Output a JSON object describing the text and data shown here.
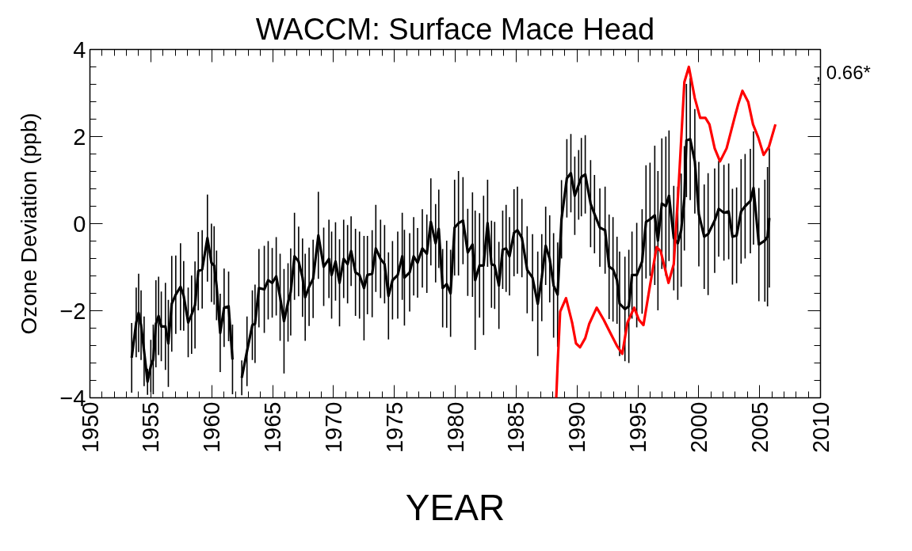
{
  "chart_data": {
    "type": "line",
    "title": "WACCM: Surface Mace Head",
    "xlabel": "YEAR",
    "ylabel": "Ozone Deviation (ppb)",
    "annotations": [
      ", 0.66*"
    ],
    "xlim": [
      1950,
      2010
    ],
    "xticks": [
      1950,
      1955,
      1960,
      1965,
      1970,
      1975,
      1980,
      1985,
      1990,
      1995,
      2000,
      2005,
      2010
    ],
    "ylim": [
      -4,
      4
    ],
    "yticks": [
      -4,
      -2,
      0,
      2,
      4
    ],
    "grid": false,
    "line_style": "solid",
    "marker": "none",
    "series": [
      {
        "color": "#000000",
        "x": [
          1953.43,
          1953.8,
          1954.0,
          1954.2,
          1954.45,
          1954.73,
          1955.0,
          1955.2,
          1955.42,
          1955.64,
          1955.86,
          1956.2,
          1956.44,
          1956.72,
          1957.05,
          1957.44,
          1957.7,
          1958.07,
          1958.35,
          1958.63,
          1958.9,
          1959.22,
          1959.65,
          1959.98,
          1960.2,
          1960.4,
          1960.7,
          1961.02,
          1961.39,
          1961.71,
          1962.0,
          1962.47,
          1962.9,
          1963.34,
          1963.56,
          1963.88,
          1964.32,
          1964.64,
          1964.97,
          1965.3,
          1965.62,
          1965.94,
          1966.27,
          1966.49,
          1966.8,
          1967.14,
          1967.46,
          1967.68,
          1968.0,
          1968.33,
          1968.76,
          1969.2,
          1969.63,
          1969.85,
          1970.17,
          1970.5,
          1970.84,
          1971.16,
          1971.45,
          1971.81,
          1972.14,
          1972.51,
          1972.79,
          1973.18,
          1973.48,
          1973.87,
          1974.2,
          1974.52,
          1974.85,
          1975.28,
          1975.65,
          1975.83,
          1976.26,
          1976.59,
          1976.91,
          1977.3,
          1977.67,
          1978.0,
          1978.39,
          1978.65,
          1978.97,
          1979.3,
          1979.62,
          1979.95,
          1980.27,
          1980.64,
          1981.03,
          1981.42,
          1981.64,
          1982.0,
          1982.33,
          1982.66,
          1982.98,
          1983.24,
          1983.59,
          1983.9,
          1984.18,
          1984.46,
          1984.83,
          1985.11,
          1985.48,
          1985.91,
          1986.35,
          1986.78,
          1987.11,
          1987.43,
          1987.76,
          1988.08,
          1988.41,
          1988.73,
          1989.17,
          1989.5,
          1989.82,
          1990.14,
          1990.36,
          1990.68,
          1991.12,
          1991.44,
          1991.88,
          1992.31,
          1992.64,
          1992.96,
          1993.29,
          1993.5,
          1993.94,
          1994.26,
          1994.52,
          1994.91,
          1995.35,
          1995.67,
          1996.0,
          1996.39,
          1996.65,
          1996.97,
          1997.3,
          1997.56,
          1997.95,
          1998.28,
          1998.56,
          1998.82,
          1998.99,
          1999.3,
          1999.68,
          2000.01,
          2000.45,
          2000.77,
          2001.31,
          2001.64,
          2002.07,
          2002.46,
          2002.77,
          2003.11,
          2003.48,
          2003.81,
          2004.24,
          2004.5,
          2004.94,
          2005.43,
          2005.65,
          2005.8
        ],
        "values": [
          -3.08,
          -2.27,
          -2.05,
          -2.33,
          -2.93,
          -3.63,
          -3.27,
          -3.12,
          -2.3,
          -2.12,
          -2.36,
          -2.36,
          -2.75,
          -1.84,
          -1.63,
          -1.45,
          -1.66,
          -2.27,
          -2.09,
          -1.87,
          -1.09,
          -1.05,
          -0.33,
          -0.9,
          -0.96,
          -1.42,
          -2.51,
          -1.93,
          -1.9,
          -3.12,
          null,
          -3.54,
          -2.93,
          -2.33,
          -2.3,
          -1.48,
          -1.51,
          -1.3,
          -1.36,
          -1.21,
          -1.69,
          -2.24,
          -1.81,
          -1.57,
          -0.75,
          -0.87,
          -1.24,
          -1.69,
          -1.45,
          -1.27,
          -0.27,
          -0.99,
          -0.81,
          -1.18,
          -0.87,
          -1.36,
          -0.81,
          -0.93,
          -0.63,
          -1.12,
          -1.18,
          -1.48,
          -1.18,
          -1.15,
          -0.57,
          -0.81,
          -0.93,
          -1.66,
          -1.3,
          -1.18,
          -0.75,
          -1.24,
          -1.12,
          -0.75,
          -0.9,
          -0.57,
          -0.69,
          0.04,
          -0.45,
          -0.12,
          -1.48,
          -1.39,
          -1.6,
          -0.09,
          0.01,
          0.07,
          -0.66,
          -0.48,
          -1.3,
          -0.96,
          -0.96,
          0.01,
          -0.93,
          -0.96,
          -1.42,
          -0.6,
          -0.57,
          -0.75,
          -0.21,
          -0.15,
          -0.33,
          -1.06,
          -1.24,
          -1.84,
          -1.24,
          -0.51,
          -0.81,
          -1.42,
          -1.63,
          0.1,
          1.04,
          1.16,
          0.64,
          0.89,
          1.07,
          1.13,
          0.46,
          0.22,
          -0.09,
          -0.15,
          -0.99,
          -1.05,
          -1.3,
          -1.84,
          -1.96,
          -1.9,
          -1.18,
          -1.18,
          -0.87,
          0.04,
          0.1,
          0.19,
          -0.39,
          0.46,
          0.4,
          0.64,
          -0.33,
          -0.45,
          -0.15,
          0.58,
          1.91,
          1.94,
          1.43,
          0.22,
          -0.3,
          -0.24,
          0.07,
          0.34,
          0.25,
          0.28,
          -0.3,
          -0.27,
          0.28,
          0.4,
          0.52,
          0.82,
          -0.48,
          -0.39,
          -0.3,
          0.13
        ],
        "errors": [
          0.8,
          0.8,
          0.9,
          0.8,
          0.8,
          0.3,
          0.6,
          0.8,
          1.0,
          0.9,
          0.8,
          1.0,
          1.0,
          1.1,
          0.9,
          1.0,
          0.8,
          0.8,
          0.9,
          1.0,
          0.9,
          0.9,
          1.0,
          0.9,
          0.9,
          0.8,
          0.9,
          0.9,
          0.8,
          0.8,
          null,
          0.4,
          0.8,
          0.8,
          0.9,
          0.9,
          1.0,
          0.9,
          0.8,
          0.9,
          1.0,
          1.2,
          0.9,
          1.0,
          1.0,
          0.8,
          0.9,
          1.0,
          0.9,
          0.9,
          1.0,
          0.9,
          0.9,
          1.0,
          0.9,
          1.0,
          0.9,
          0.9,
          0.8,
          1.0,
          1.0,
          1.2,
          0.9,
          1.0,
          1.0,
          0.9,
          0.9,
          1.0,
          0.9,
          1.0,
          1.0,
          1.1,
          0.9,
          0.9,
          0.8,
          0.9,
          0.9,
          1.0,
          0.9,
          0.9,
          0.9,
          1.0,
          1.0,
          1.1,
          1.2,
          1.0,
          1.0,
          1.2,
          1.6,
          1.2,
          1.6,
          1.0,
          1.0,
          1.0,
          1.0,
          0.9,
          1.0,
          0.9,
          1.0,
          1.0,
          0.9,
          1.0,
          1.0,
          1.2,
          1.0,
          0.9,
          1.0,
          1.2,
          1.2,
          0.9,
          0.9,
          0.9,
          0.9,
          0.8,
          0.9,
          0.9,
          1.0,
          0.9,
          0.9,
          1.0,
          1.2,
          1.2,
          1.0,
          1.2,
          1.2,
          1.3,
          1.0,
          1.2,
          1.2,
          1.3,
          1.3,
          1.6,
          1.6,
          1.5,
          1.6,
          1.5,
          1.2,
          1.3,
          1.3,
          1.2,
          1.3,
          1.4,
          1.2,
          1.2,
          1.2,
          1.4,
          1.2,
          1.1,
          1.1,
          1.1,
          1.1,
          1.1,
          1.2,
          1.2,
          1.2,
          1.3,
          1.3,
          1.4,
          1.6,
          1.6
        ]
      },
      {
        "color": "#ff0000",
        "x": [
          1988.3,
          1988.41,
          1988.62,
          1989.1,
          1989.6,
          1989.92,
          1990.25,
          1990.68,
          1991.01,
          1991.62,
          1992.2,
          1992.74,
          1993.29,
          1993.72,
          1994.15,
          1994.7,
          1995.09,
          1995.46,
          1996.0,
          1996.54,
          1996.87,
          1997.52,
          1997.95,
          1998.38,
          1998.82,
          1999.19,
          1999.68,
          2000.12,
          2000.55,
          2000.88,
          2001.31,
          2001.75,
          2002.29,
          2002.94,
          2003.26,
          2003.59,
          2004.07,
          2004.46,
          2004.89,
          2005.33,
          2005.76,
          2006.3
        ],
        "values": [
          -4.0,
          -3.24,
          -2.02,
          -1.71,
          -2.27,
          -2.75,
          -2.84,
          -2.63,
          -2.3,
          -1.93,
          -2.21,
          -2.51,
          -2.81,
          -2.99,
          -2.27,
          -1.93,
          -2.21,
          -2.33,
          -1.42,
          -0.54,
          -0.63,
          -1.36,
          -0.93,
          1.01,
          3.25,
          3.6,
          2.88,
          2.43,
          2.43,
          2.28,
          1.73,
          1.43,
          1.73,
          2.43,
          2.76,
          3.05,
          2.79,
          2.28,
          1.98,
          1.58,
          1.76,
          2.28
        ]
      }
    ]
  }
}
